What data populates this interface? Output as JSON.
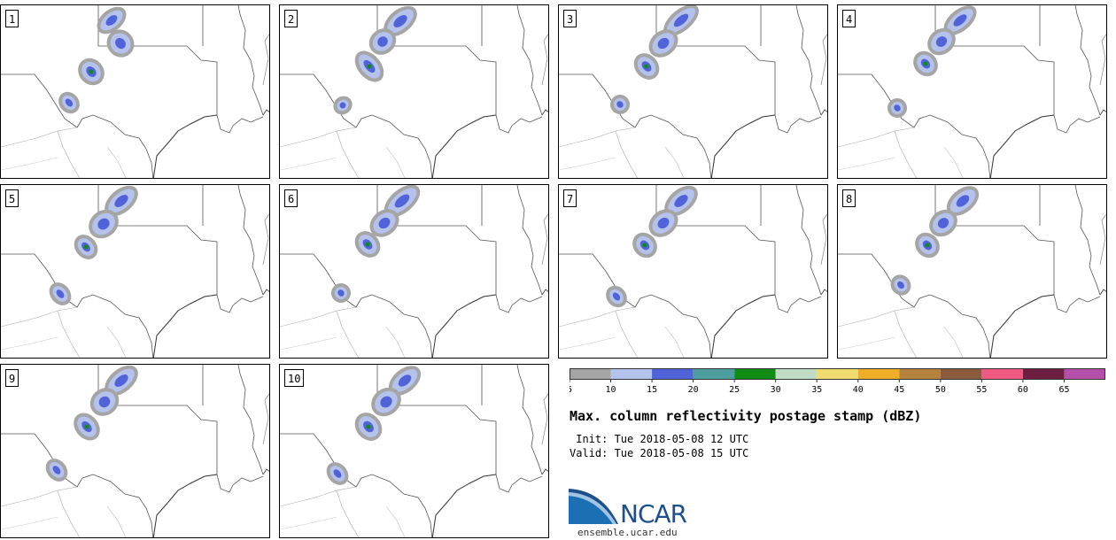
{
  "panels": [
    {
      "label": "1",
      "storm": [
        [
          110,
          8,
          30,
          18
        ],
        [
          124,
          30,
          22,
          26
        ],
        [
          92,
          62,
          20,
          26
        ],
        [
          70,
          100,
          14,
          20
        ]
      ]
    },
    {
      "label": "2",
      "storm": [
        [
          118,
          8,
          36,
          20
        ],
        [
          104,
          30,
          24,
          22
        ],
        [
          92,
          52,
          18,
          34
        ],
        [
          64,
          106,
          14,
          14
        ]
      ]
    },
    {
      "label": "3",
      "storm": [
        [
          118,
          8,
          40,
          18
        ],
        [
          104,
          32,
          28,
          22
        ],
        [
          90,
          56,
          18,
          26
        ],
        [
          62,
          104,
          14,
          16
        ]
      ]
    },
    {
      "label": "4",
      "storm": [
        [
          120,
          8,
          36,
          18
        ],
        [
          104,
          30,
          26,
          22
        ],
        [
          90,
          54,
          18,
          24
        ],
        [
          60,
          108,
          14,
          16
        ]
      ]
    },
    {
      "label": "5",
      "storm": [
        [
          118,
          8,
          36,
          20
        ],
        [
          102,
          32,
          28,
          24
        ],
        [
          88,
          58,
          16,
          24
        ],
        [
          60,
          112,
          14,
          22
        ]
      ]
    },
    {
      "label": "6",
      "storm": [
        [
          118,
          8,
          40,
          20
        ],
        [
          104,
          32,
          28,
          22
        ],
        [
          90,
          54,
          18,
          26
        ],
        [
          62,
          114,
          14,
          16
        ]
      ]
    },
    {
      "label": "7",
      "storm": [
        [
          120,
          8,
          36,
          20
        ],
        [
          104,
          32,
          28,
          22
        ],
        [
          88,
          56,
          18,
          24
        ],
        [
          58,
          116,
          14,
          20
        ]
      ]
    },
    {
      "label": "8",
      "storm": [
        [
          124,
          8,
          34,
          20
        ],
        [
          106,
          32,
          26,
          22
        ],
        [
          92,
          56,
          18,
          24
        ],
        [
          64,
          104,
          14,
          18
        ]
      ]
    },
    {
      "label": "9",
      "storm": [
        [
          118,
          8,
          36,
          20
        ],
        [
          104,
          30,
          26,
          24
        ],
        [
          88,
          56,
          18,
          28
        ],
        [
          56,
          108,
          14,
          22
        ]
      ]
    },
    {
      "label": "10",
      "storm": [
        [
          124,
          8,
          34,
          20
        ],
        [
          106,
          30,
          28,
          24
        ],
        [
          90,
          56,
          20,
          28
        ],
        [
          58,
          112,
          14,
          22
        ]
      ]
    }
  ],
  "colorbar": {
    "ticks": [
      "5",
      "10",
      "15",
      "20",
      "25",
      "30",
      "35",
      "40",
      "45",
      "50",
      "55",
      "60",
      "65"
    ],
    "colors": [
      "#a5a5a5",
      "#b4c2ec",
      "#5063d9",
      "#4e9ea0",
      "#108c14",
      "#c1dcc4",
      "#f0dc6e",
      "#efad28",
      "#b4823c",
      "#8c5a3c",
      "#f05a82",
      "#6e1e41",
      "#b450aa"
    ]
  },
  "title": "Max. column reflectivity postage stamp (dBZ)",
  "init": " Init: Tue 2018-05-08 12 UTC",
  "valid": "Valid: Tue 2018-05-08 15 UTC",
  "logo_text": "NCAR",
  "url": "ensemble.ucar.edu"
}
